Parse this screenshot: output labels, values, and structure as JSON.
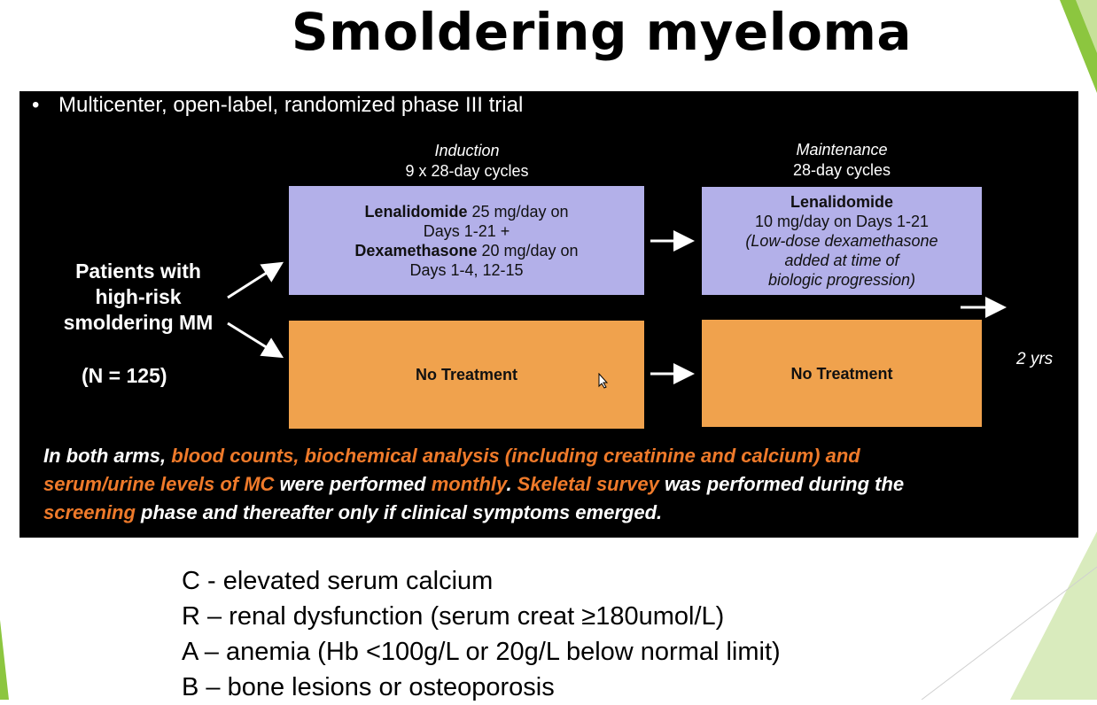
{
  "slide": {
    "title": "Smoldering myeloma",
    "bullet": "Multicenter, open-label, randomized phase III trial"
  },
  "colors": {
    "treatment_box": "#b3b0e9",
    "control_box": "#f0a24d",
    "highlight_text": "#ef7a2a",
    "panel_bg": "#000000",
    "accent_green": "#8cc63f"
  },
  "diagram": {
    "induction": {
      "name": "Induction",
      "detail": "9 x 28-day cycles"
    },
    "maintenance": {
      "name": "Maintenance",
      "detail": "28-day cycles"
    },
    "patients": {
      "line1": "Patients with",
      "line2": "high-risk",
      "line3": "smoldering MM",
      "n": "(N = 125)"
    },
    "induction_box": {
      "drug1": "Lenalidomide",
      "drug1_dose": "25 mg/day on",
      "drug1_days": "Days 1-21 +",
      "drug2": "Dexamethasone",
      "drug2_dose": "20 mg/day on",
      "drug2_days": "Days 1-4, 12-15"
    },
    "maintenance_box": {
      "drug": "Lenalidomide",
      "dose": "10 mg/day on Days 1-21",
      "note1": "(Low-dose dexamethasone",
      "note2": "added at time of",
      "note3": "biologic progression)"
    },
    "control_induction": "No Treatment",
    "control_maintenance": "No Treatment",
    "duration": "2 yrs"
  },
  "note": {
    "p1": "In both arms, ",
    "p2": "blood counts, biochemical analysis (including creatinine and calcium) and",
    "p3": "serum/urine levels of MC",
    "p4": " were performed ",
    "p5": "monthly",
    "p6": ". ",
    "p7": "Skeletal survey",
    "p8": " was performed during the",
    "p9": "screening",
    "p10": " phase and thereafter only if clinical symptoms emerged."
  },
  "crab": [
    "C - elevated serum calcium",
    "R – renal dysfunction (serum creat ≥180umol/L)",
    "A – anemia (Hb <100g/L or 20g/L below normal limit)",
    "B – bone lesions or osteoporosis"
  ]
}
